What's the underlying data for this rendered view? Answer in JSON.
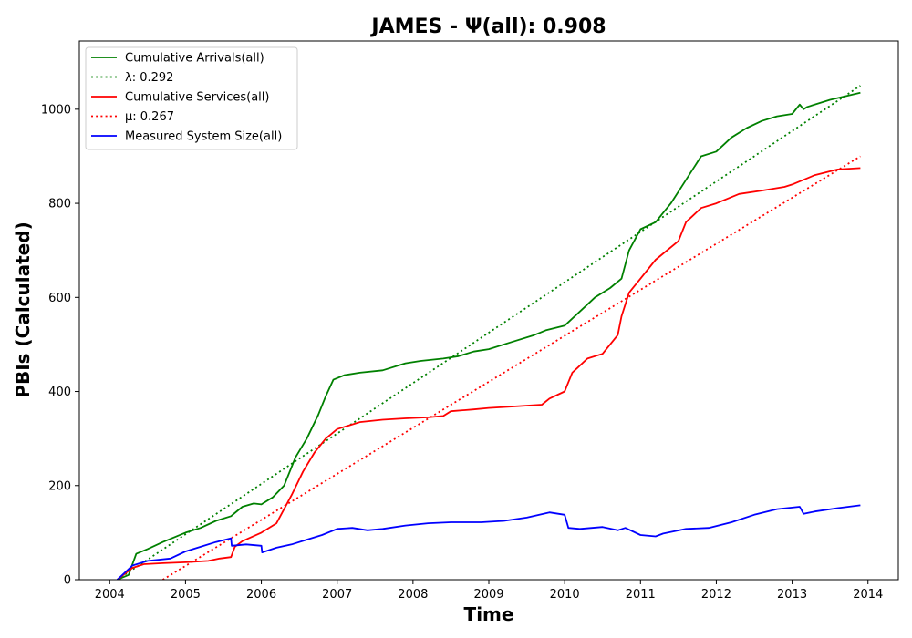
{
  "chart_data": {
    "type": "line",
    "title": "JAMES -  Ψ(all): 0.908",
    "xlabel": "Time",
    "ylabel": "PBIs (Calculated)",
    "xlim": [
      2003.6,
      2014.4
    ],
    "ylim": [
      0,
      1145
    ],
    "grid": false,
    "legend_position": "top-left",
    "xticks": [
      2004,
      2005,
      2006,
      2007,
      2008,
      2009,
      2010,
      2011,
      2012,
      2013,
      2014
    ],
    "xtick_labels": [
      "2004",
      "2005",
      "2006",
      "2007",
      "2008",
      "2009",
      "2010",
      "2011",
      "2012",
      "2013",
      "2014"
    ],
    "yticks": [
      0,
      200,
      400,
      600,
      800,
      1000
    ],
    "ytick_labels": [
      "0",
      "200",
      "400",
      "600",
      "800",
      "1000"
    ],
    "series": [
      {
        "name": "Cumulative Arrivals(all)",
        "style": "solid",
        "color": "#008000",
        "x": [
          2004.1,
          2004.25,
          2004.35,
          2004.5,
          2004.7,
          2005.0,
          2005.2,
          2005.4,
          2005.6,
          2005.75,
          2005.9,
          2006.0,
          2006.15,
          2006.3,
          2006.45,
          2006.6,
          2006.75,
          2006.85,
          2006.95,
          2007.1,
          2007.3,
          2007.6,
          2007.9,
          2008.1,
          2008.4,
          2008.6,
          2008.8,
          2009.0,
          2009.3,
          2009.6,
          2009.75,
          2010.0,
          2010.2,
          2010.4,
          2010.6,
          2010.75,
          2010.85,
          2011.0,
          2011.2,
          2011.4,
          2011.6,
          2011.8,
          2012.0,
          2012.2,
          2012.4,
          2012.6,
          2012.8,
          2013.0,
          2013.1,
          2013.15,
          2013.2,
          2013.5,
          2013.9
        ],
        "values": [
          0,
          10,
          55,
          65,
          80,
          100,
          110,
          125,
          135,
          155,
          162,
          160,
          175,
          200,
          260,
          300,
          350,
          390,
          425,
          435,
          440,
          445,
          460,
          465,
          470,
          475,
          485,
          490,
          505,
          520,
          530,
          540,
          570,
          600,
          620,
          640,
          700,
          745,
          760,
          800,
          850,
          900,
          910,
          940,
          960,
          975,
          985,
          990,
          1010,
          1000,
          1005,
          1020,
          1035
        ]
      },
      {
        "name": "λ: 0.292",
        "style": "dotted",
        "color": "#008000",
        "x": [
          2004.1,
          2013.9
        ],
        "values": [
          0,
          1050
        ]
      },
      {
        "name": "Cumulative Services(all)",
        "style": "solid",
        "color": "#ff0000",
        "x": [
          2004.1,
          2004.3,
          2004.45,
          2004.7,
          2005.0,
          2005.3,
          2005.45,
          2005.6,
          2005.65,
          2005.75,
          2006.0,
          2006.2,
          2006.4,
          2006.55,
          2006.7,
          2006.85,
          2007.0,
          2007.1,
          2007.3,
          2007.6,
          2007.9,
          2008.2,
          2008.4,
          2008.5,
          2008.8,
          2009.0,
          2009.3,
          2009.7,
          2009.8,
          2010.0,
          2010.05,
          2010.1,
          2010.3,
          2010.5,
          2010.7,
          2010.75,
          2010.85,
          2011.0,
          2011.2,
          2011.5,
          2011.6,
          2011.8,
          2012.0,
          2012.3,
          2012.6,
          2012.9,
          2013.0,
          2013.3,
          2013.6,
          2013.9
        ],
        "values": [
          0,
          25,
          33,
          35,
          37,
          40,
          45,
          48,
          70,
          82,
          100,
          120,
          180,
          230,
          270,
          300,
          320,
          325,
          335,
          340,
          343,
          345,
          348,
          358,
          362,
          365,
          368,
          372,
          385,
          400,
          420,
          440,
          470,
          480,
          520,
          560,
          610,
          640,
          680,
          720,
          760,
          790,
          800,
          820,
          827,
          835,
          840,
          860,
          872,
          875
        ]
      },
      {
        "name": "μ: 0.267",
        "style": "dotted",
        "color": "#ff0000",
        "x": [
          2004.7,
          2013.9
        ],
        "values": [
          0,
          900
        ]
      },
      {
        "name": "Measured System Size(all)",
        "style": "solid",
        "color": "#0000ff",
        "x": [
          2004.1,
          2004.3,
          2004.5,
          2004.8,
          2005.0,
          2005.2,
          2005.4,
          2005.6,
          2005.61,
          2005.8,
          2006.0,
          2006.01,
          2006.2,
          2006.4,
          2006.6,
          2006.8,
          2007.0,
          2007.2,
          2007.4,
          2007.6,
          2007.9,
          2008.2,
          2008.5,
          2008.9,
          2009.2,
          2009.5,
          2009.8,
          2010.0,
          2010.05,
          2010.2,
          2010.5,
          2010.7,
          2010.8,
          2011.0,
          2011.2,
          2011.3,
          2011.6,
          2011.9,
          2012.2,
          2012.5,
          2012.8,
          2013.1,
          2013.15,
          2013.3,
          2013.6,
          2013.9
        ],
        "values": [
          0,
          30,
          40,
          45,
          60,
          70,
          80,
          88,
          72,
          75,
          72,
          58,
          68,
          75,
          85,
          95,
          108,
          110,
          105,
          108,
          115,
          120,
          122,
          122,
          125,
          132,
          143,
          138,
          110,
          108,
          112,
          105,
          110,
          95,
          92,
          98,
          108,
          110,
          122,
          138,
          150,
          155,
          140,
          145,
          152,
          158
        ]
      }
    ]
  }
}
